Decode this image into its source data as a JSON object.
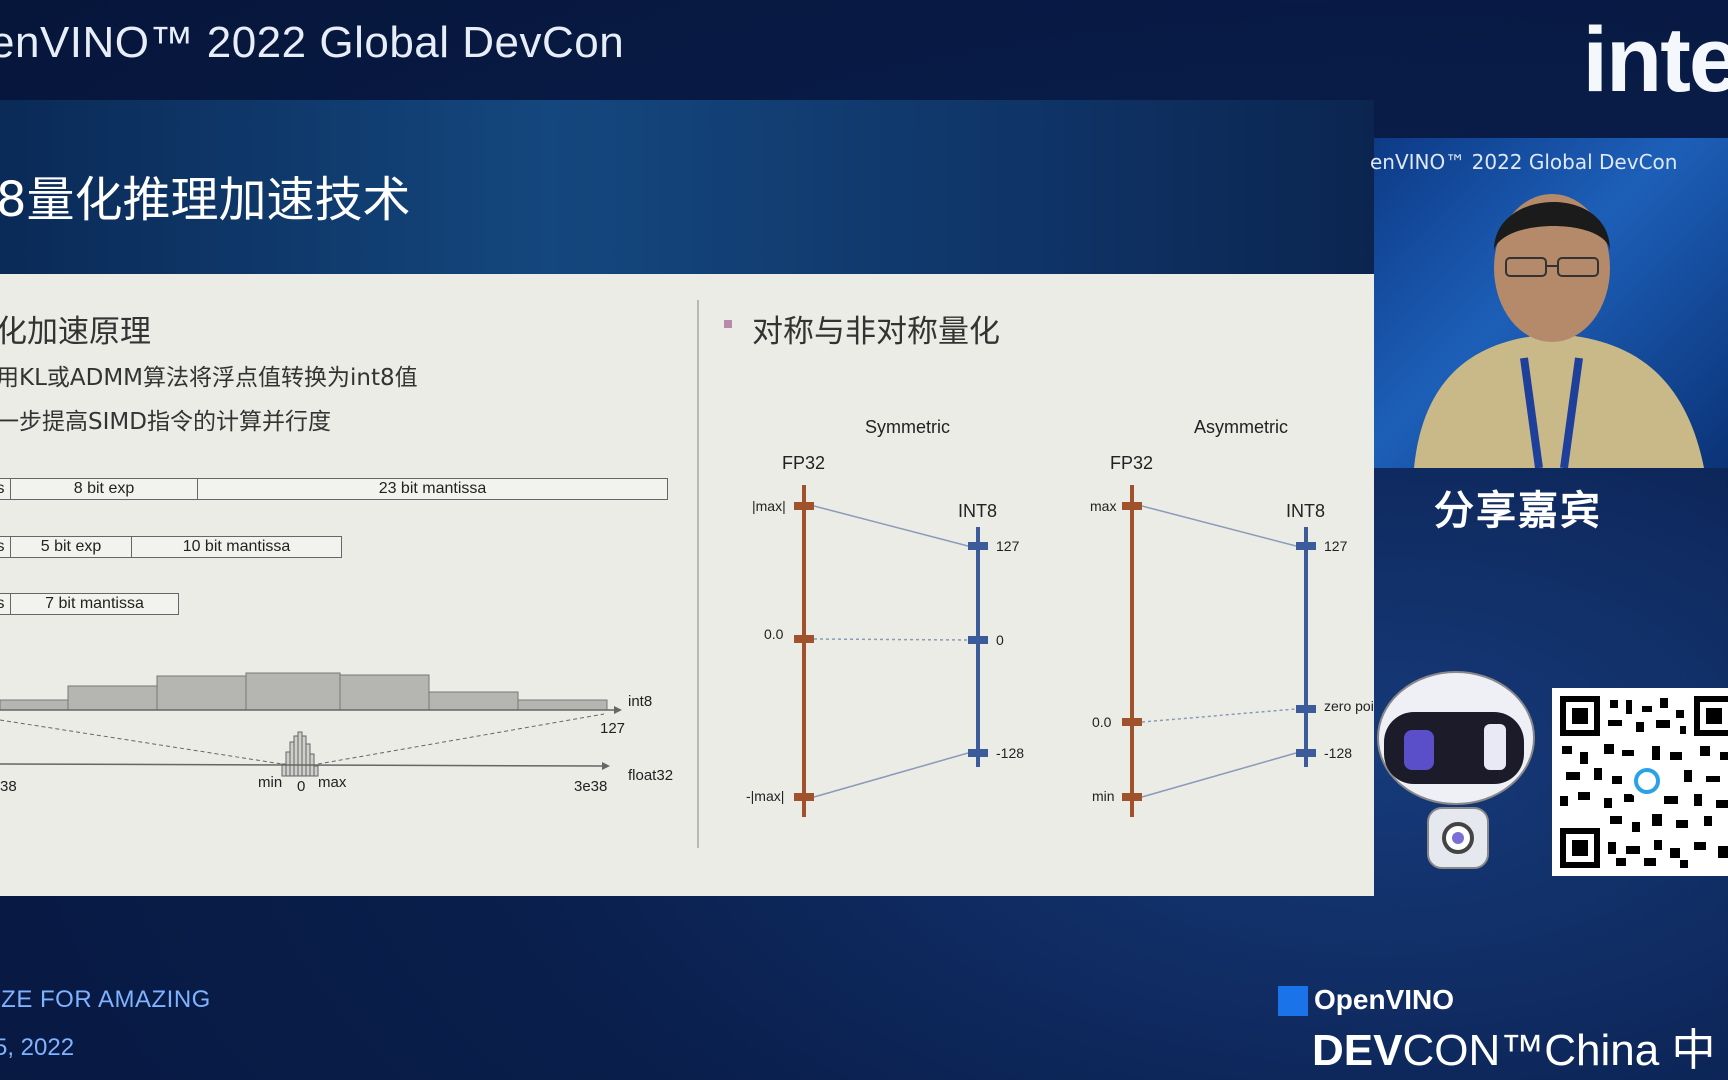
{
  "header": {
    "event_title": "enVINO™ 2022 Global DevCon",
    "brand_logo": "inte"
  },
  "slide": {
    "title": "8量化推理加速技术",
    "left_section": {
      "heading": "化加速原理",
      "bullets": [
        "用KL或ADMM算法将浮点值转换为int8值",
        "一步提高SIMD指令的计算并行度"
      ],
      "formats": [
        {
          "cells": [
            "s",
            "8 bit exp",
            "23 bit mantissa"
          ]
        },
        {
          "cells": [
            "s",
            "5 bit exp",
            "10 bit mantissa"
          ]
        },
        {
          "cells": [
            "s",
            "7 bit mantissa"
          ]
        }
      ],
      "histogram": {
        "int_axis_label": "int8",
        "int_max_label": "127",
        "float_axis_label": "float32",
        "float_min_label": "38",
        "float_max_label": "3e38",
        "min_label": "min",
        "zero_label": "0",
        "max_label": "max"
      }
    },
    "right_section": {
      "heading": "对称与非对称量化",
      "symmetric": {
        "title": "Symmetric",
        "fp_label": "FP32",
        "int_label": "INT8",
        "fp_ticks": [
          "|max|",
          "0.0",
          "-|max|"
        ],
        "int_ticks": [
          "127",
          "0",
          "-128"
        ]
      },
      "asymmetric": {
        "title": "Asymmetric",
        "fp_label": "FP32",
        "int_label": "INT8",
        "fp_ticks": [
          "max",
          "0.0",
          "min"
        ],
        "int_ticks": [
          "127",
          "zero poi",
          "-128"
        ]
      }
    }
  },
  "presenter": {
    "background_text": "enVINO™ 2022 Global DevCon",
    "label": "分享嘉宾"
  },
  "footer": {
    "tagline": "IZE FOR AMAZING",
    "date": "5, 2022",
    "openvino": "OpenVINO",
    "devcon_bold": "DEV",
    "devcon_rest": "CON™China 中"
  },
  "colors": {
    "fp_axis": "#a0522d",
    "int_axis": "#3b5b9a",
    "accent": "#00c7fd"
  }
}
